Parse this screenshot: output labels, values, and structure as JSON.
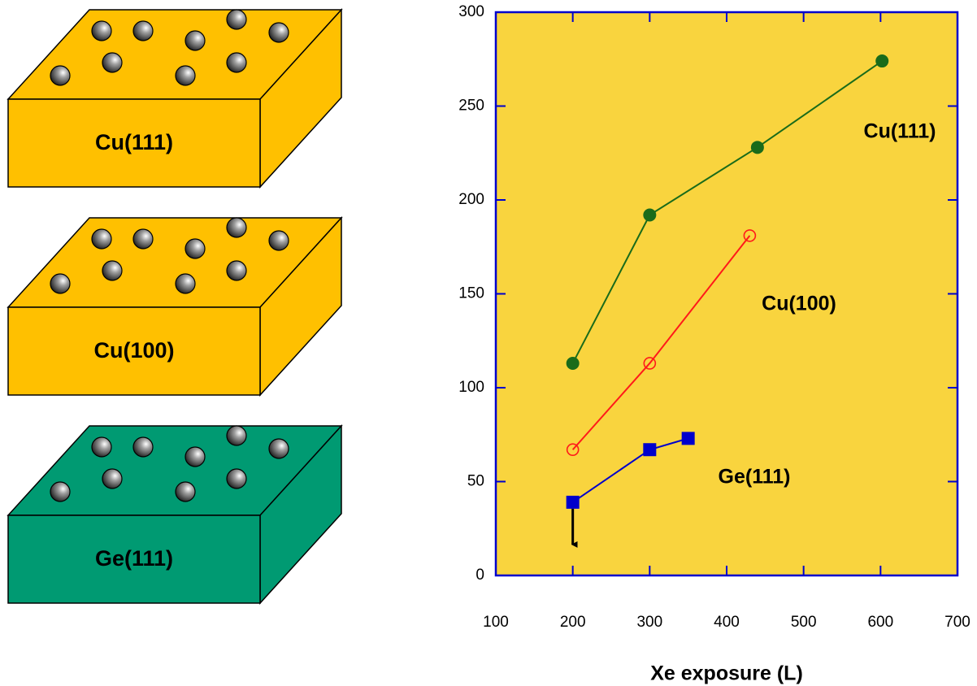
{
  "diagram": {
    "boxes": [
      {
        "label": "Cu(111)",
        "color": "#ffc000"
      },
      {
        "label": "Cu(100)",
        "color": "#ffc000"
      },
      {
        "label": "Ge(111)",
        "color": "#009a72"
      }
    ]
  },
  "chart_data": {
    "type": "line",
    "xlabel": "Xe exposure (L)",
    "xlim": [
      100,
      700
    ],
    "xticks": [
      100,
      200,
      300,
      400,
      500,
      600,
      700
    ],
    "ylim": [
      0,
      300
    ],
    "yticks": [
      0,
      50,
      100,
      150,
      200,
      250,
      300
    ],
    "background": "#f9d43e",
    "axis_color": "#0000cc",
    "series": [
      {
        "name": "Cu(111)",
        "color": "#1a6b1a",
        "marker": "filled-circle",
        "x": [
          200,
          300,
          440,
          602
        ],
        "values": [
          113,
          192,
          228,
          274
        ]
      },
      {
        "name": "Cu(100)",
        "color": "#ff1a1a",
        "marker": "open-circle",
        "x": [
          200,
          300,
          430
        ],
        "values": [
          67,
          113,
          181
        ]
      },
      {
        "name": "Ge(111)",
        "color": "#0000cc",
        "marker": "square",
        "x": [
          200,
          300,
          350
        ],
        "values": [
          39,
          67,
          73
        ]
      }
    ]
  }
}
